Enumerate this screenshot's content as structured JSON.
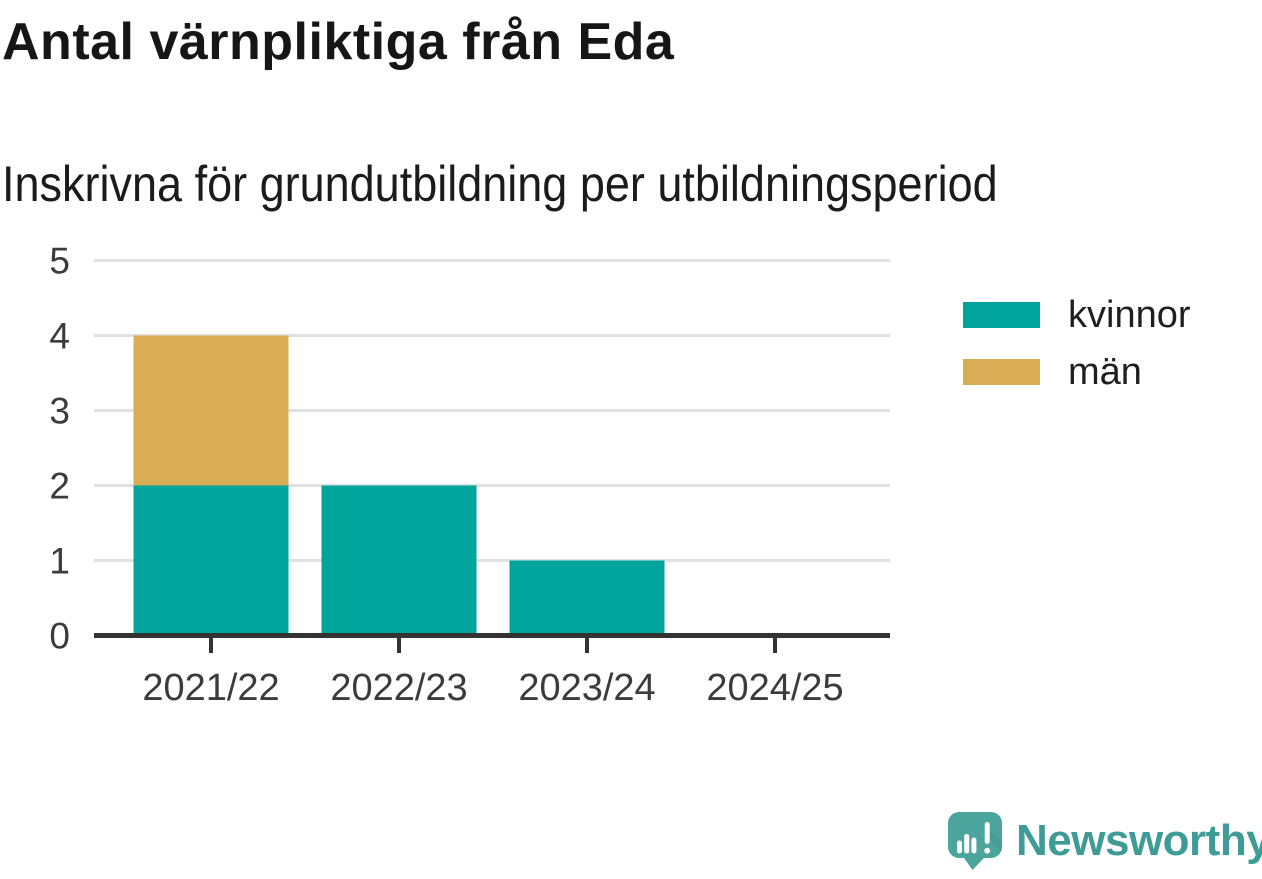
{
  "chart_data": {
    "type": "bar",
    "stacked": true,
    "title": "Antal värnpliktiga från Eda",
    "subtitle": "Inskrivna för grundutbildning per utbildningsperiod",
    "categories": [
      "2021/22",
      "2022/23",
      "2023/24",
      "2024/25"
    ],
    "series": [
      {
        "name": "kvinnor",
        "color": "#00a49a",
        "values": [
          2,
          2,
          1,
          0
        ]
      },
      {
        "name": "män",
        "color": "#d9ac56",
        "values": [
          2,
          0,
          0,
          0
        ]
      }
    ],
    "totals": [
      4,
      2,
      1,
      0
    ],
    "xlabel": "",
    "ylabel": "",
    "ylim": [
      0,
      5
    ],
    "yticks": [
      0,
      1,
      2,
      3,
      4,
      5
    ],
    "grid": true,
    "legend_position": "right",
    "axis_color": "#333333",
    "gridline_color": "#e1e1e1",
    "tick_label_color": "#3b3b3b"
  },
  "footer": {
    "brand": "Newsworthy",
    "brand_color": "#3f9b95",
    "icon": "newsworthy-logo-icon",
    "icon_color": "#4ba59d"
  }
}
